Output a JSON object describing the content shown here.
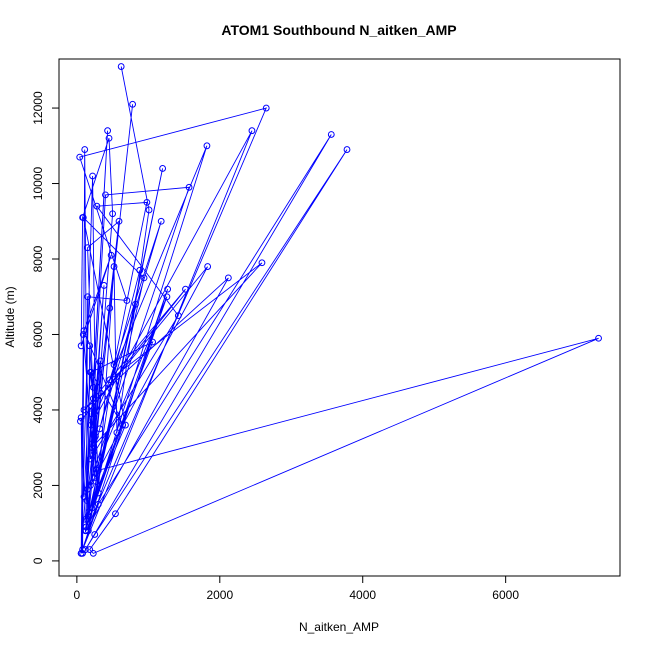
{
  "chart_data": {
    "type": "line",
    "title": "ATOM1 Southbound N_aitken_AMP",
    "xlabel": "N_aitken_AMP",
    "ylabel": "Altitude (m)",
    "xlim": [
      -250,
      7600
    ],
    "ylim": [
      -400,
      13300
    ],
    "x_ticks": [
      0,
      2000,
      4000,
      6000
    ],
    "y_ticks": [
      0,
      2000,
      4000,
      6000,
      8000,
      10000,
      12000
    ],
    "grid": false,
    "legend": "none",
    "marker": "open-circle",
    "color": "#0000ff",
    "series": [
      {
        "x": [
          620,
          1010,
          560,
          520,
          300,
          210,
          260,
          180,
          150,
          110,
          80,
          60,
          100,
          190,
          230,
          300,
          7300,
          230,
          180,
          540,
          3780,
          250,
          120,
          3560,
          300,
          80,
          2450,
          200,
          1820,
          120,
          1260,
          150,
          1570,
          400,
          190,
          1420,
          280,
          980,
          520,
          160,
          1200,
          210,
          940,
          90,
          680,
          120,
          430,
          140,
          590,
          150,
          270,
          220,
          60,
          1270,
          130,
          150,
          700,
          40,
          2650,
          130,
          2120,
          100,
          1520,
          50,
          1830,
          190,
          780,
          120,
          820,
          160,
          380,
          210,
          2590,
          460,
          1180,
          320,
          880,
          240,
          500,
          450,
          80,
          60,
          480,
          100,
          640,
          200,
          1060,
          170,
          460,
          210,
          330,
          200,
          250,
          90,
          60,
          230
        ],
        "y": [
          13100,
          9300,
          3400,
          7800,
          1800,
          4100,
          3300,
          5700,
          1100,
          10900,
          200,
          3800,
          1700,
          5000,
          4300,
          2400,
          5900,
          200,
          300,
          1250,
          10900,
          700,
          300,
          11300,
          1500,
          300,
          11400,
          3600,
          11000,
          800,
          7000,
          1900,
          9900,
          9700,
          2700,
          6500,
          9400,
          9500,
          5200,
          800,
          10400,
          1400,
          7500,
          9100,
          3600,
          1100,
          11400,
          1600,
          9000,
          8300,
          2100,
          10200,
          200,
          7200,
          900,
          7000,
          6900,
          10700,
          12000,
          800,
          7500,
          4000,
          7200,
          3700,
          7800,
          2000,
          12100,
          800,
          6800,
          1200,
          7300,
          3000,
          7900,
          4800,
          9000,
          3500,
          7700,
          2900,
          9200,
          11200,
          9100,
          5700,
          8100,
          6100,
          3600,
          5000,
          5800,
          1300,
          6700,
          3100,
          5300,
          3900,
          2200,
          6000,
          200,
          4600
        ]
      }
    ]
  }
}
